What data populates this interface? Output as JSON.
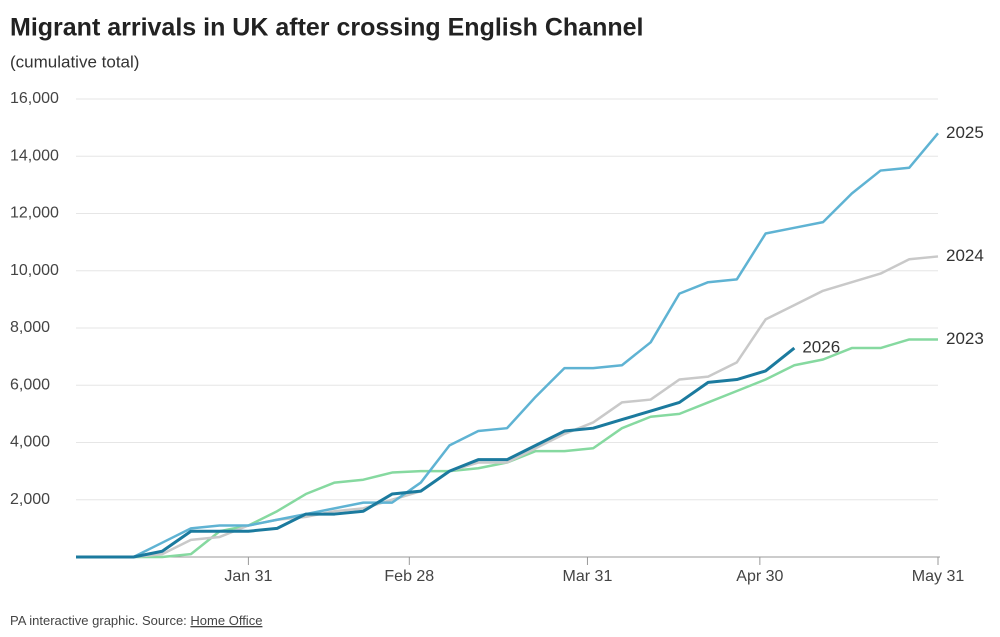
{
  "chart_data": {
    "type": "line",
    "title": "Migrant arrivals in UK after crossing English Channel",
    "subtitle": "(cumulative total)",
    "source_prefix": "PA interactive graphic. Source:",
    "source_link": "Home Office",
    "x": [
      1,
      6,
      11,
      16,
      21,
      26,
      31,
      36,
      41,
      46,
      51,
      56,
      61,
      66,
      71,
      76,
      81,
      86,
      91,
      96,
      101,
      106,
      111,
      116,
      121,
      126,
      131,
      136,
      141,
      146,
      151
    ],
    "xlim": [
      1,
      151
    ],
    "xticks": [
      {
        "value": 31,
        "label": "Jan 31"
      },
      {
        "value": 59,
        "label": "Feb 28"
      },
      {
        "value": 90,
        "label": "Mar 31"
      },
      {
        "value": 120,
        "label": "Apr 30"
      },
      {
        "value": 151,
        "label": "May 31"
      }
    ],
    "ylim": [
      0,
      16000
    ],
    "yticks": [
      {
        "value": 2000,
        "label": "2,000"
      },
      {
        "value": 4000,
        "label": "4,000"
      },
      {
        "value": 6000,
        "label": "6,000"
      },
      {
        "value": 8000,
        "label": "8,000"
      },
      {
        "value": 10000,
        "label": "10,000"
      },
      {
        "value": 12000,
        "label": "12,000"
      },
      {
        "value": 14000,
        "label": "14,000"
      },
      {
        "value": 16000,
        "label": "16,000"
      }
    ],
    "grid": true,
    "series": [
      {
        "name": "2023",
        "color": "#86d9a0",
        "values": [
          0,
          0,
          0,
          0,
          100,
          900,
          1100,
          1600,
          2200,
          2600,
          2700,
          2950,
          3000,
          3000,
          3100,
          3300,
          3700,
          3700,
          3800,
          4500,
          4900,
          5000,
          5400,
          5800,
          6200,
          6700,
          6900,
          7300,
          7300,
          7600,
          7600
        ]
      },
      {
        "name": "2024",
        "color": "#c9c9c9",
        "values": [
          0,
          0,
          0,
          100,
          600,
          700,
          1100,
          1300,
          1400,
          1600,
          1700,
          2000,
          2300,
          3000,
          3300,
          3300,
          3800,
          4300,
          4700,
          5400,
          5500,
          6200,
          6300,
          6800,
          8300,
          8800,
          9300,
          9600,
          9900,
          10400,
          10500
        ]
      },
      {
        "name": "2025",
        "color": "#5fb3d3",
        "values": [
          0,
          0,
          0,
          500,
          1000,
          1100,
          1100,
          1300,
          1500,
          1700,
          1900,
          1900,
          2600,
          3900,
          4400,
          4500,
          5600,
          6600,
          6600,
          6700,
          7500,
          9200,
          9600,
          9700,
          11300,
          11500,
          11700,
          12700,
          13500,
          13600,
          14800
        ]
      },
      {
        "name": "2026",
        "color": "#1b7a9e",
        "values": [
          0,
          0,
          0,
          200,
          900,
          900,
          900,
          1000,
          1500,
          1500,
          1600,
          2200,
          2300,
          3000,
          3400,
          3400,
          3900,
          4400,
          4500,
          4800,
          5100,
          5400,
          6100,
          6200,
          6500,
          7300,
          null,
          null,
          null,
          null,
          null
        ]
      }
    ]
  }
}
